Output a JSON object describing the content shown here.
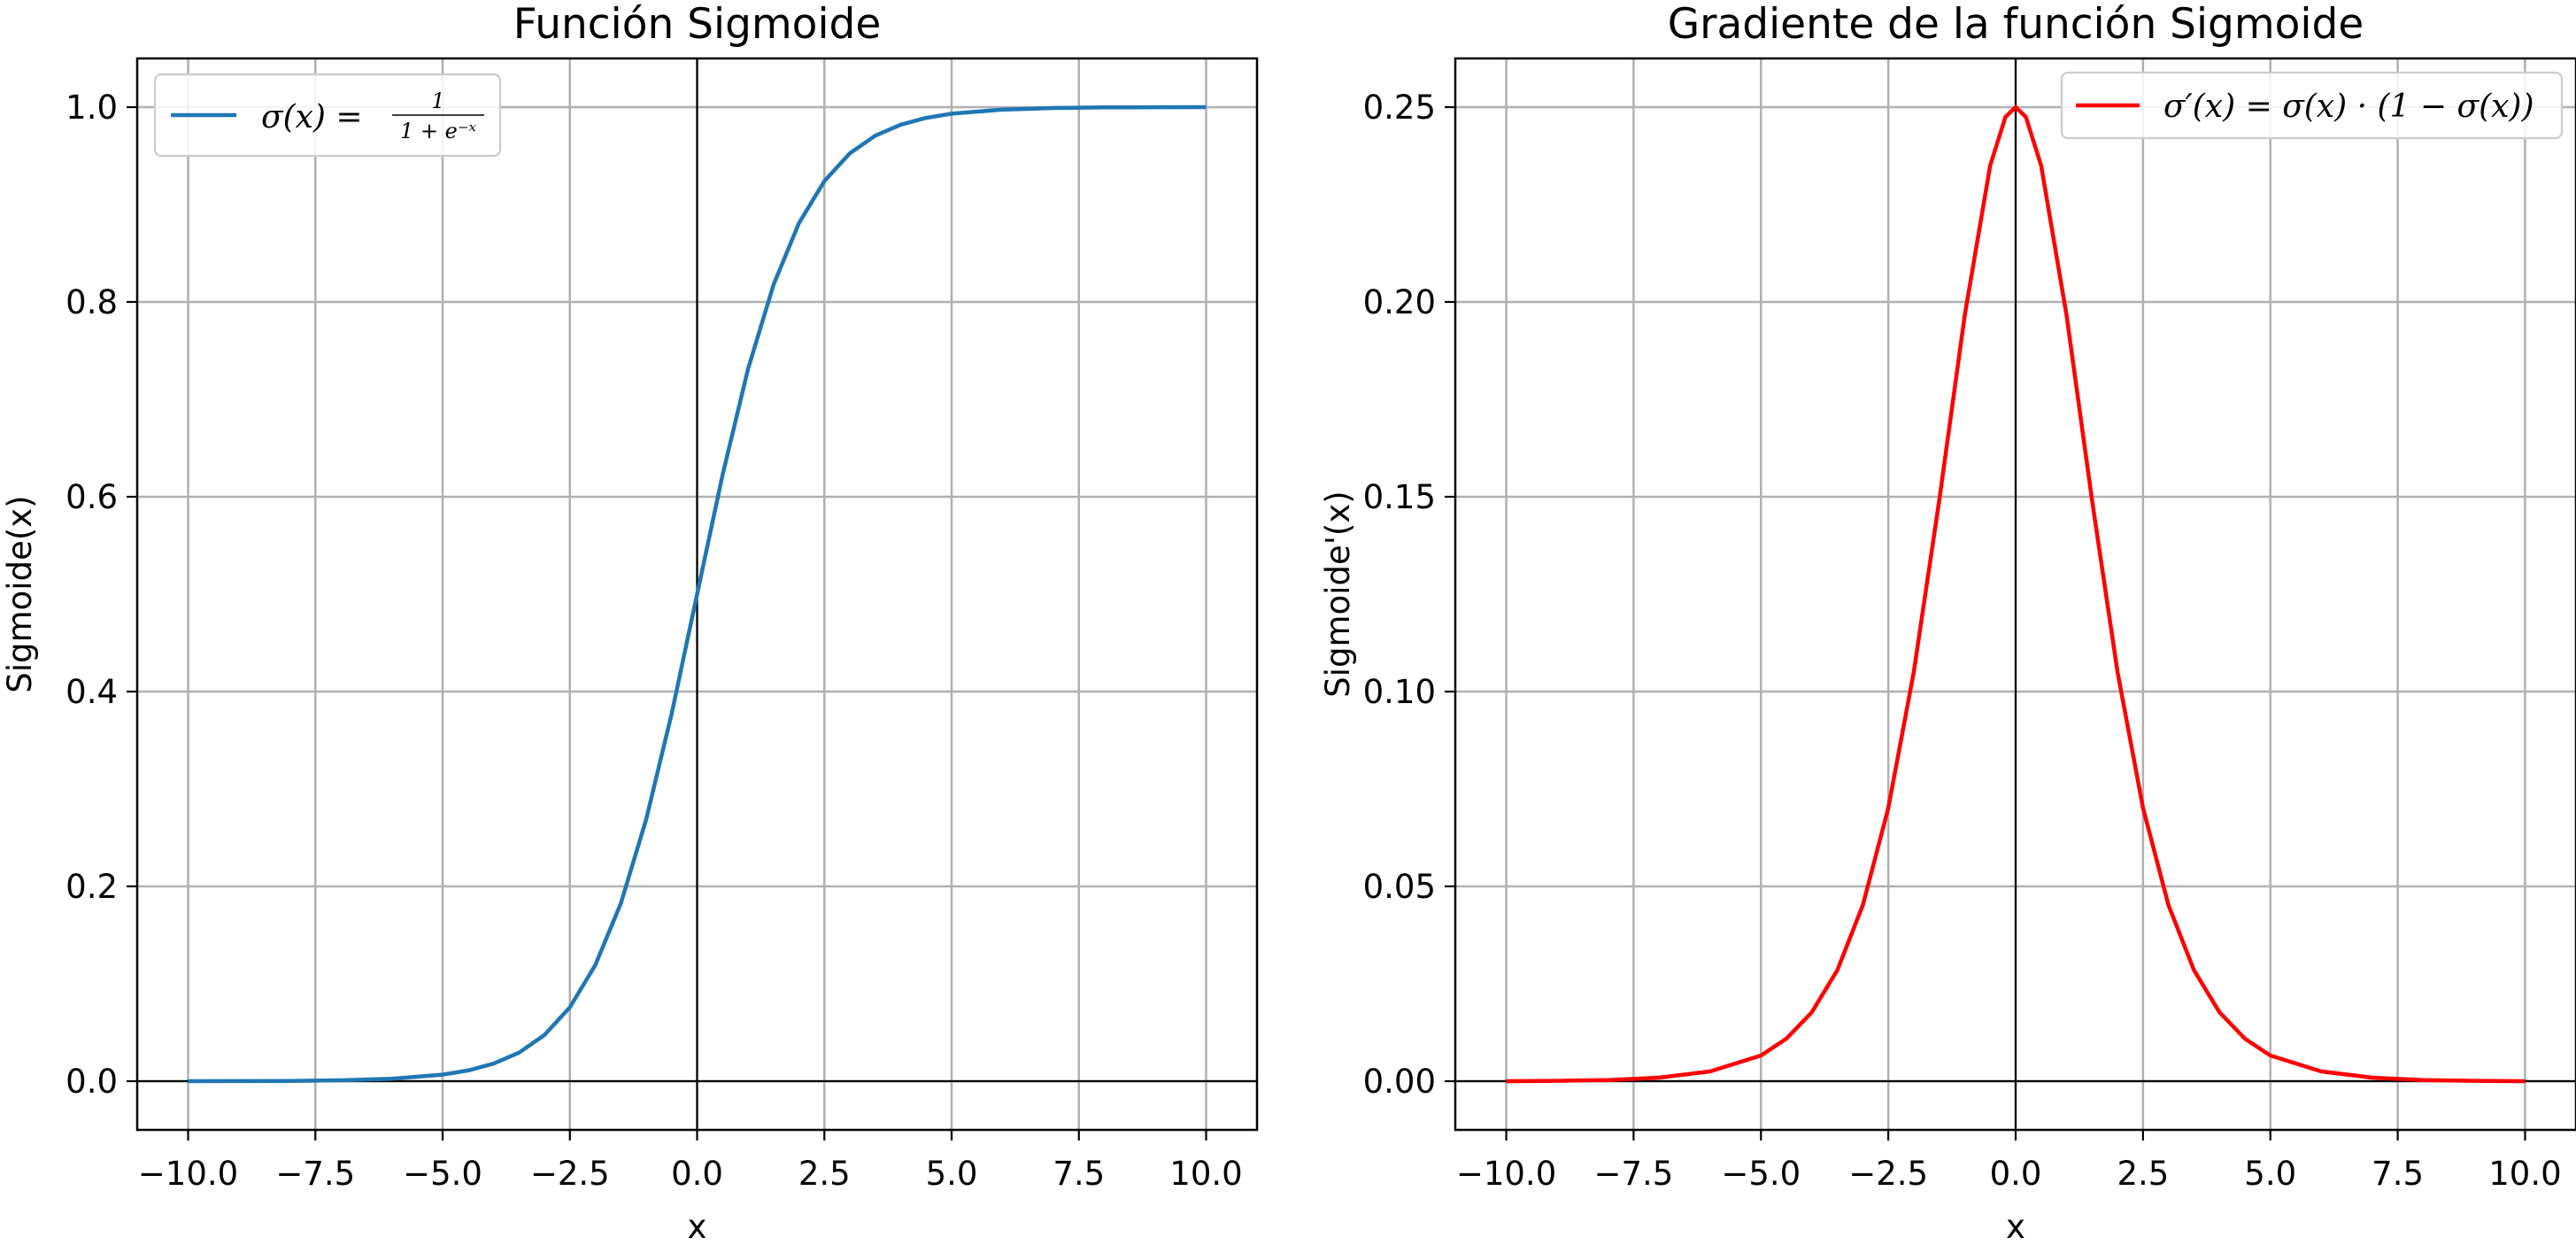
{
  "chart_data": [
    {
      "type": "line",
      "title": "Función Sigmoide",
      "xlabel": "x",
      "ylabel": "Sigmoide(x)",
      "xlim": [
        -11,
        11
      ],
      "ylim": [
        -0.05,
        1.05
      ],
      "xticks": [
        -10.0,
        -7.5,
        -5.0,
        -2.5,
        0.0,
        2.5,
        5.0,
        7.5,
        10.0
      ],
      "xtick_labels": [
        "−10.0",
        "−7.5",
        "−5.0",
        "−2.5",
        "0.0",
        "2.5",
        "5.0",
        "7.5",
        "10.0"
      ],
      "yticks": [
        0.0,
        0.2,
        0.4,
        0.6,
        0.8,
        1.0
      ],
      "ytick_labels": [
        "0.0",
        "0.2",
        "0.4",
        "0.6",
        "0.8",
        "1.0"
      ],
      "grid": true,
      "legend_position": "upper-left",
      "series": [
        {
          "name": "σ(x) = 1 / (1 + e^{−x})",
          "legend": {
            "prefix": "σ(x) =",
            "numerator": "1",
            "denominator": "1 + e⁻ˣ"
          },
          "color": "#1f77b4",
          "x": [
            -10,
            -9,
            -8,
            -7,
            -6,
            -5,
            -4.5,
            -4,
            -3.5,
            -3,
            -2.5,
            -2,
            -1.5,
            -1,
            -0.5,
            0,
            0.5,
            1,
            1.5,
            2,
            2.5,
            3,
            3.5,
            4,
            4.5,
            5,
            6,
            7,
            8,
            9,
            10
          ],
          "y": [
            0.0,
            0.0001,
            0.0003,
            0.0009,
            0.0025,
            0.0067,
            0.011,
            0.018,
            0.0293,
            0.0474,
            0.0759,
            0.1192,
            0.1824,
            0.2689,
            0.3775,
            0.5,
            0.6225,
            0.7311,
            0.8176,
            0.8808,
            0.9241,
            0.9526,
            0.9707,
            0.982,
            0.989,
            0.9933,
            0.9975,
            0.9991,
            0.9997,
            0.9999,
            1.0
          ]
        }
      ]
    },
    {
      "type": "line",
      "title": "Gradiente de la función Sigmoide",
      "xlabel": "x",
      "ylabel": "Sigmoide'(x)",
      "xlim": [
        -11,
        11
      ],
      "ylim": [
        -0.0125,
        0.2625
      ],
      "xticks": [
        -10.0,
        -7.5,
        -5.0,
        -2.5,
        0.0,
        2.5,
        5.0,
        7.5,
        10.0
      ],
      "xtick_labels": [
        "−10.0",
        "−7.5",
        "−5.0",
        "−2.5",
        "0.0",
        "2.5",
        "5.0",
        "7.5",
        "10.0"
      ],
      "yticks": [
        0.0,
        0.05,
        0.1,
        0.15,
        0.2,
        0.25
      ],
      "ytick_labels": [
        "0.00",
        "0.05",
        "0.10",
        "0.15",
        "0.20",
        "0.25"
      ],
      "grid": true,
      "legend_position": "upper-right",
      "series": [
        {
          "name": "σ′(x) = σ(x) · (1 − σ(x))",
          "legend": {
            "prefix": "σ′(x) = σ(x) · (1 − σ(x))"
          },
          "color": "#ff0000",
          "x": [
            -10,
            -9,
            -8,
            -7,
            -6,
            -5,
            -4.5,
            -4,
            -3.5,
            -3,
            -2.5,
            -2,
            -1.5,
            -1,
            -0.5,
            -0.2,
            0,
            0.2,
            0.5,
            1,
            1.5,
            2,
            2.5,
            3,
            3.5,
            4,
            4.5,
            5,
            6,
            7,
            8,
            9,
            10
          ],
          "y": [
            0.0,
            0.0001,
            0.0003,
            0.0009,
            0.0025,
            0.0066,
            0.0109,
            0.0177,
            0.0285,
            0.0452,
            0.0701,
            0.105,
            0.1491,
            0.1966,
            0.235,
            0.2475,
            0.25,
            0.2475,
            0.235,
            0.1966,
            0.1491,
            0.105,
            0.0701,
            0.0452,
            0.0285,
            0.0177,
            0.0109,
            0.0066,
            0.0025,
            0.0009,
            0.0003,
            0.0001,
            0.0
          ]
        }
      ]
    }
  ]
}
